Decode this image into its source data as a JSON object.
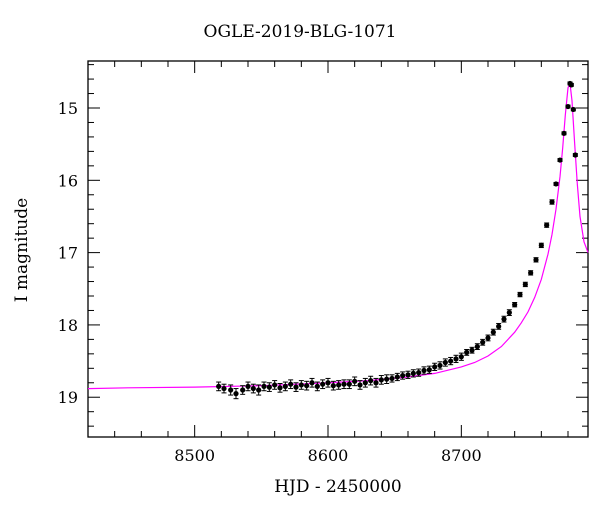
{
  "chart_data": {
    "type": "scatter",
    "title": "OGLE-2019-BLG-1071",
    "xlabel": "HJD - 2450000",
    "ylabel": "I magnitude",
    "xlim": [
      8420,
      8795
    ],
    "ylim": [
      19.55,
      14.35
    ],
    "y_inverted": true,
    "x_ticks": [
      8500,
      8600,
      8700
    ],
    "y_ticks": [
      15,
      16,
      17,
      18,
      19
    ],
    "grid": false,
    "colors": {
      "data": "#000000",
      "model": "#ff00ff"
    },
    "series": [
      {
        "role": "observations",
        "marker": "filled-circle-with-errorbars",
        "x": [
          8518,
          8522,
          8527,
          8531,
          8536,
          8540,
          8544,
          8548,
          8552,
          8556,
          8560,
          8564,
          8568,
          8572,
          8576,
          8580,
          8584,
          8588,
          8592,
          8596,
          8600,
          8604,
          8608,
          8612,
          8616,
          8620,
          8624,
          8628,
          8632,
          8636,
          8640,
          8644,
          8648,
          8652,
          8656,
          8660,
          8664,
          8668,
          8672,
          8676,
          8680,
          8684,
          8688,
          8692,
          8696,
          8700,
          8704,
          8708,
          8712,
          8716,
          8720,
          8724,
          8728,
          8732,
          8736,
          8740,
          8744,
          8748,
          8752,
          8756,
          8760,
          8764,
          8768,
          8771,
          8774,
          8777,
          8780,
          8781.5,
          8782.5,
          8784,
          8785.5
        ],
        "y": [
          18.85,
          18.88,
          18.9,
          18.95,
          18.9,
          18.85,
          18.88,
          18.9,
          18.85,
          18.86,
          18.83,
          18.87,
          18.85,
          18.82,
          18.86,
          18.83,
          18.84,
          18.8,
          18.85,
          18.82,
          18.8,
          18.84,
          18.83,
          18.82,
          18.82,
          18.78,
          18.83,
          18.8,
          18.77,
          18.8,
          18.76,
          18.75,
          18.74,
          18.72,
          18.7,
          18.69,
          18.67,
          18.66,
          18.63,
          18.62,
          18.58,
          18.56,
          18.52,
          18.5,
          18.47,
          18.44,
          18.38,
          18.35,
          18.3,
          18.24,
          18.18,
          18.1,
          18.02,
          17.92,
          17.83,
          17.72,
          17.58,
          17.44,
          17.28,
          17.1,
          16.9,
          16.62,
          16.3,
          16.05,
          15.72,
          15.35,
          14.98,
          14.66,
          14.68,
          15.02,
          15.65
        ],
        "yerr": [
          0.06,
          0.06,
          0.07,
          0.07,
          0.06,
          0.06,
          0.06,
          0.07,
          0.06,
          0.06,
          0.06,
          0.06,
          0.06,
          0.06,
          0.06,
          0.06,
          0.06,
          0.06,
          0.06,
          0.06,
          0.06,
          0.06,
          0.06,
          0.06,
          0.06,
          0.06,
          0.06,
          0.06,
          0.06,
          0.06,
          0.06,
          0.06,
          0.05,
          0.05,
          0.05,
          0.05,
          0.05,
          0.05,
          0.05,
          0.05,
          0.05,
          0.05,
          0.05,
          0.05,
          0.05,
          0.05,
          0.04,
          0.04,
          0.04,
          0.04,
          0.04,
          0.04,
          0.04,
          0.04,
          0.04,
          0.03,
          0.03,
          0.03,
          0.03,
          0.03,
          0.03,
          0.03,
          0.03,
          0.02,
          0.02,
          0.02,
          0.02,
          0.02,
          0.02,
          0.02,
          0.02
        ]
      },
      {
        "role": "model",
        "style": "line",
        "x": [
          8420,
          8450,
          8500,
          8550,
          8600,
          8630,
          8660,
          8680,
          8700,
          8710,
          8720,
          8730,
          8740,
          8745,
          8750,
          8755,
          8760,
          8765,
          8768,
          8771,
          8774,
          8776,
          8778,
          8780,
          8781.5,
          8783,
          8785,
          8787,
          8789,
          8792,
          8795
        ],
        "y": [
          18.88,
          18.87,
          18.86,
          18.84,
          18.8,
          18.77,
          18.72,
          18.67,
          18.58,
          18.52,
          18.43,
          18.3,
          18.1,
          17.97,
          17.82,
          17.62,
          17.37,
          17.02,
          16.75,
          16.4,
          15.95,
          15.55,
          15.1,
          14.72,
          14.66,
          14.9,
          15.5,
          16.05,
          16.5,
          16.85,
          17.0
        ]
      }
    ]
  }
}
